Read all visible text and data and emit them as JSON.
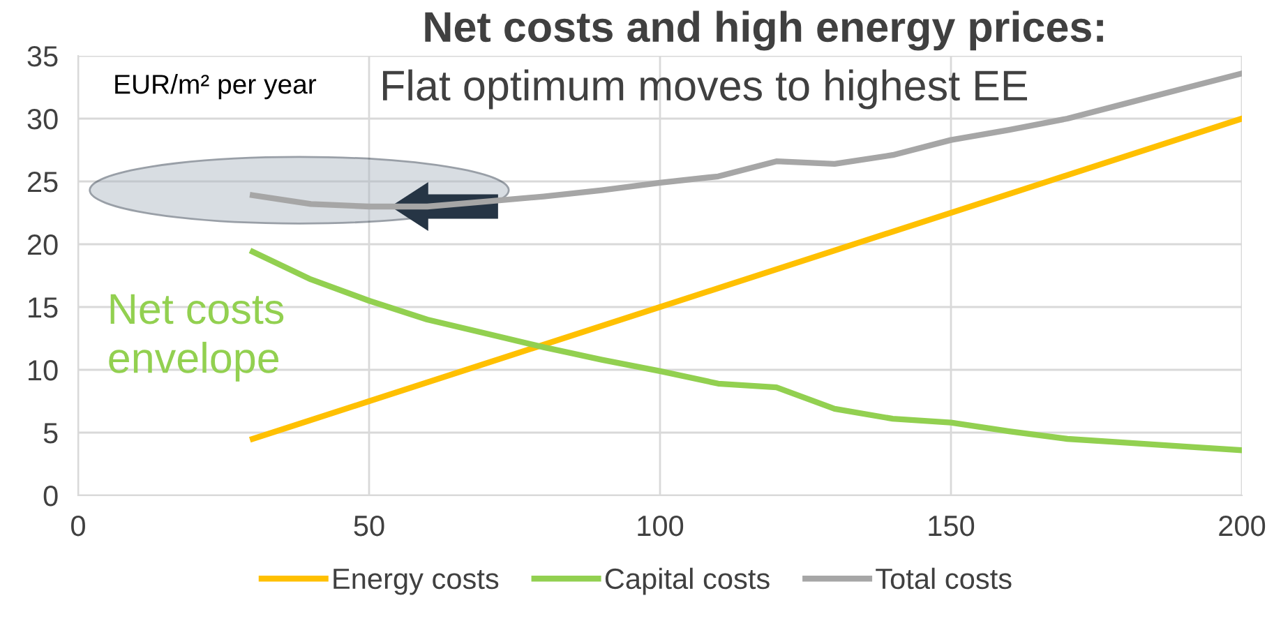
{
  "chart_data": {
    "type": "line",
    "title": "Net costs and high energy prices:",
    "subtitle": "Flat optimum moves to highest EE",
    "ylabel": "EUR/m² per year",
    "annotations": [
      "Net costs\nenvelope"
    ],
    "x": [
      30,
      40,
      50,
      60,
      70,
      80,
      90,
      100,
      110,
      120,
      130,
      140,
      150,
      160,
      170,
      180,
      190,
      200
    ],
    "series": [
      {
        "name": "Energy costs",
        "color": "#ffc000",
        "values": [
          4.5,
          6,
          7.5,
          9,
          10.5,
          12,
          13.5,
          15,
          16.5,
          18,
          19.5,
          21,
          22.5,
          24,
          25.5,
          27,
          28.5,
          30
        ]
      },
      {
        "name": "Capital costs",
        "color": "#92d050",
        "values": [
          19.4,
          17.2,
          15.5,
          14.0,
          12.9,
          11.8,
          10.8,
          9.9,
          8.9,
          8.6,
          6.9,
          6.1,
          5.8,
          5.1,
          4.5,
          4.2,
          3.9,
          3.6
        ]
      },
      {
        "name": "Total costs",
        "color": "#a6a6a6",
        "values": [
          23.9,
          23.2,
          23.0,
          23.0,
          23.4,
          23.8,
          24.3,
          24.9,
          25.4,
          26.6,
          26.4,
          27.1,
          28.3,
          29.1,
          30.0,
          31.2,
          32.4,
          33.6
        ]
      }
    ],
    "xlim": [
      0,
      200
    ],
    "xticks": [
      0,
      50,
      100,
      150,
      200
    ],
    "ylim": [
      0,
      35
    ],
    "yticks": [
      0,
      5,
      10,
      15,
      20,
      25,
      30,
      35
    ],
    "grid": true,
    "legend": "bottom",
    "marker": "none",
    "line_style": "solid"
  }
}
